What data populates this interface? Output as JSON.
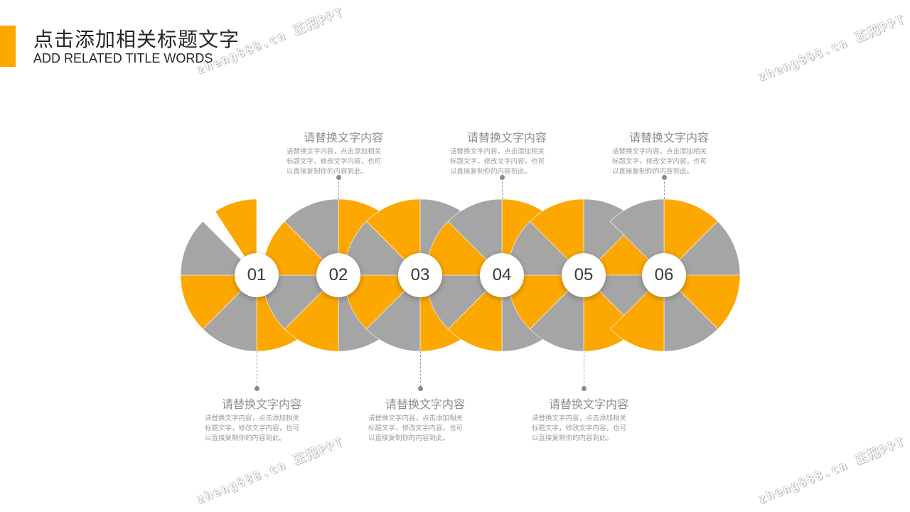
{
  "header": {
    "title_cn": "点击添加相关标题文字",
    "title_en": "ADD RELATED TITLE WORDS"
  },
  "watermark": {
    "text": "zheng888.cn 正把PPT"
  },
  "colors": {
    "accent": "#FDA701",
    "gray": "#A5A5A5"
  },
  "diagram": {
    "nodes": [
      {
        "label": "01",
        "heading": "请替换文字内容",
        "body": [
          "请替换文字内容，点击添加相关",
          "标题文字，修改文字内容，也可",
          "以直接复制你的内容到此。"
        ]
      },
      {
        "label": "02",
        "heading": "请替换文字内容",
        "body": [
          "请替换文字内容，点击添加相关",
          "标题文字，修改文字内容，也可",
          "以直接复制你的内容到此。"
        ]
      },
      {
        "label": "03",
        "heading": "请替换文字内容",
        "body": [
          "请替换文字内容，点击添加相关",
          "标题文字，修改文字内容，也可",
          "以直接复制你的内容到此。"
        ]
      },
      {
        "label": "04",
        "heading": "请替换文字内容",
        "body": [
          "请替换文字内容，点击添加相关",
          "标题文字，修改文字内容，也可",
          "以直接复制你的内容到此。"
        ]
      },
      {
        "label": "05",
        "heading": "请替换文字内容",
        "body": [
          "请替换文字内容，点击添加相关",
          "标题文字，修改文字内容，也可",
          "以直接复制你的内容到此。"
        ]
      },
      {
        "label": "06",
        "heading": "请替换文字内容",
        "body": [
          "请替换文字内容，点击添加相关",
          "标题文字，修改文字内容，也可",
          "以直接复制你的内容到此。"
        ]
      }
    ]
  }
}
